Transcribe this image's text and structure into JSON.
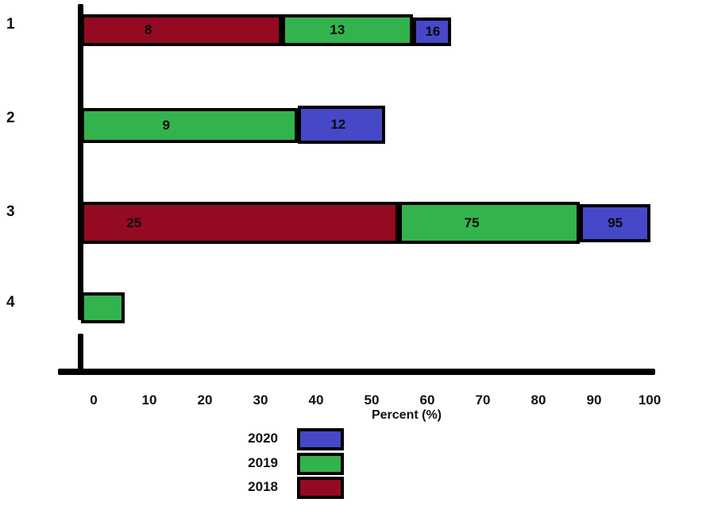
{
  "chart_data": {
    "type": "bar",
    "orientation": "horizontal-stacked",
    "title": "",
    "xlabel": "Percent (%)",
    "ylabel": "",
    "categories": [
      "1",
      "2",
      "3",
      "4"
    ],
    "x_ticks": [
      "0",
      "10",
      "20",
      "30",
      "40",
      "50",
      "60",
      "70",
      "80",
      "90",
      "100"
    ],
    "xlim": [
      0,
      100
    ],
    "grid": false,
    "legend_position": "bottom",
    "legend": [
      {
        "label": "2020",
        "color": "#4648C8"
      },
      {
        "label": "2019",
        "color": "#33B34E"
      },
      {
        "label": "2018",
        "color": "#950A23"
      }
    ],
    "series": [
      {
        "name": "2018",
        "values": [
          8,
          null,
          25,
          null
        ]
      },
      {
        "name": "2019",
        "values": [
          13,
          9,
          75,
          null
        ]
      },
      {
        "name": "2020",
        "values": [
          16,
          12,
          95,
          null
        ]
      }
    ],
    "rows": [
      {
        "category": "1",
        "segments": [
          {
            "year": "2018",
            "value": "8",
            "start": 0,
            "end": 35.3,
            "label_pos": 0.33
          },
          {
            "year": "2019",
            "value": "13",
            "start": 35.3,
            "end": 58.4,
            "label_pos": 0.42
          },
          {
            "year": "2020",
            "value": "16",
            "start": 58.4,
            "end": 65.1,
            "label_pos": 0.52
          }
        ]
      },
      {
        "category": "2",
        "segments": [
          {
            "year": "2019",
            "value": "9",
            "start": 0,
            "end": 38.1,
            "label_pos": 0.39
          },
          {
            "year": "2020",
            "value": "12",
            "start": 38.1,
            "end": 53.5,
            "label_pos": 0.46
          }
        ]
      },
      {
        "category": "3",
        "segments": [
          {
            "year": "2018",
            "value": "25",
            "start": 0,
            "end": 55.9,
            "label_pos": 0.16
          },
          {
            "year": "2019",
            "value": "75",
            "start": 55.9,
            "end": 87.7,
            "label_pos": 0.4
          },
          {
            "year": "2020",
            "value": "95",
            "start": 87.7,
            "end": 100.2,
            "label_pos": 0.5
          }
        ]
      },
      {
        "category": "4",
        "segments": [
          {
            "year": "2019",
            "value": "",
            "start": 0,
            "end": 7.7,
            "label_pos": 0.5
          }
        ]
      }
    ]
  }
}
